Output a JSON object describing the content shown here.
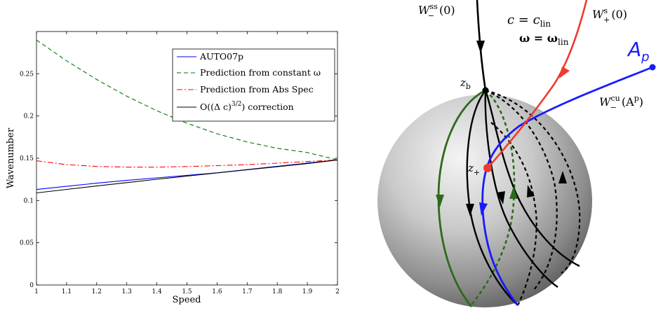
{
  "chart_data": [
    {
      "type": "line",
      "xlabel": "Speed",
      "ylabel": "Wavenumber",
      "xlim": [
        1,
        2
      ],
      "ylim": [
        0,
        0.3
      ],
      "xticks": [
        "1",
        "1.1",
        "1.2",
        "1.3",
        "1.4",
        "1.5",
        "1.6",
        "1.7",
        "1.8",
        "1.9",
        "2"
      ],
      "yticks": [
        "0",
        "0.05",
        "0.1",
        "0.15",
        "0.2",
        "0.25"
      ],
      "legend_position": "top-right",
      "grid": false,
      "x": [
        1.0,
        1.1,
        1.2,
        1.3,
        1.4,
        1.5,
        1.6,
        1.7,
        1.8,
        1.9,
        2.0
      ],
      "series": [
        {
          "name": "AUTO07p",
          "color": "#0000ff",
          "dash": "solid",
          "values": [
            0.113,
            0.1168,
            0.1205,
            0.1238,
            0.1268,
            0.1298,
            0.1328,
            0.1366,
            0.1405,
            0.1443,
            0.148
          ]
        },
        {
          "name": "Prediction from constant ω",
          "color": "#007700",
          "dash": "dashed",
          "values": [
            0.29,
            0.2654,
            0.2432,
            0.2234,
            0.2062,
            0.1914,
            0.179,
            0.1692,
            0.1618,
            0.1568,
            0.148
          ]
        },
        {
          "name": "Prediction from Abs Spec",
          "color": "#ff0000",
          "dash": "dashdot",
          "values": [
            0.147,
            0.1425,
            0.1403,
            0.1395,
            0.1395,
            0.1402,
            0.1412,
            0.1425,
            0.1442,
            0.1461,
            0.148
          ]
        },
        {
          "name": "O((Δ c)^{3/2}) correction",
          "color": "#000000",
          "dash": "solid",
          "values": [
            0.109,
            0.1131,
            0.1172,
            0.1212,
            0.1251,
            0.1289,
            0.1326,
            0.1363,
            0.14,
            0.1437,
            0.148
          ]
        }
      ]
    },
    {
      "type": "diagram",
      "labels": {
        "w_ss": "W",
        "w_ss_sup": "ss",
        "w_ss_sub": "−",
        "w_ss_arg": "(0)",
        "w_s": "W",
        "w_s_sup": "s",
        "w_s_sub": "+",
        "w_s_arg": "(0)",
        "c_eq": "c = c",
        "c_sub": "lin",
        "omega_eq": "ω = ω",
        "omega_sub": "lin",
        "ap": "A",
        "ap_sub": "p",
        "w_cu": "W",
        "w_cu_sup": "cu",
        "w_cu_sub": "−",
        "w_cu_arg_open": "(A",
        "w_cu_arg_sup": "p",
        "w_cu_arg_close": ")",
        "zb": "z",
        "zb_sub": "b",
        "zplus": "z",
        "zplus_sub": "+"
      },
      "colors": {
        "blue": "#1a1aff",
        "red": "#ee3b2e",
        "green": "#2d6b1a",
        "black": "#000000"
      }
    }
  ]
}
